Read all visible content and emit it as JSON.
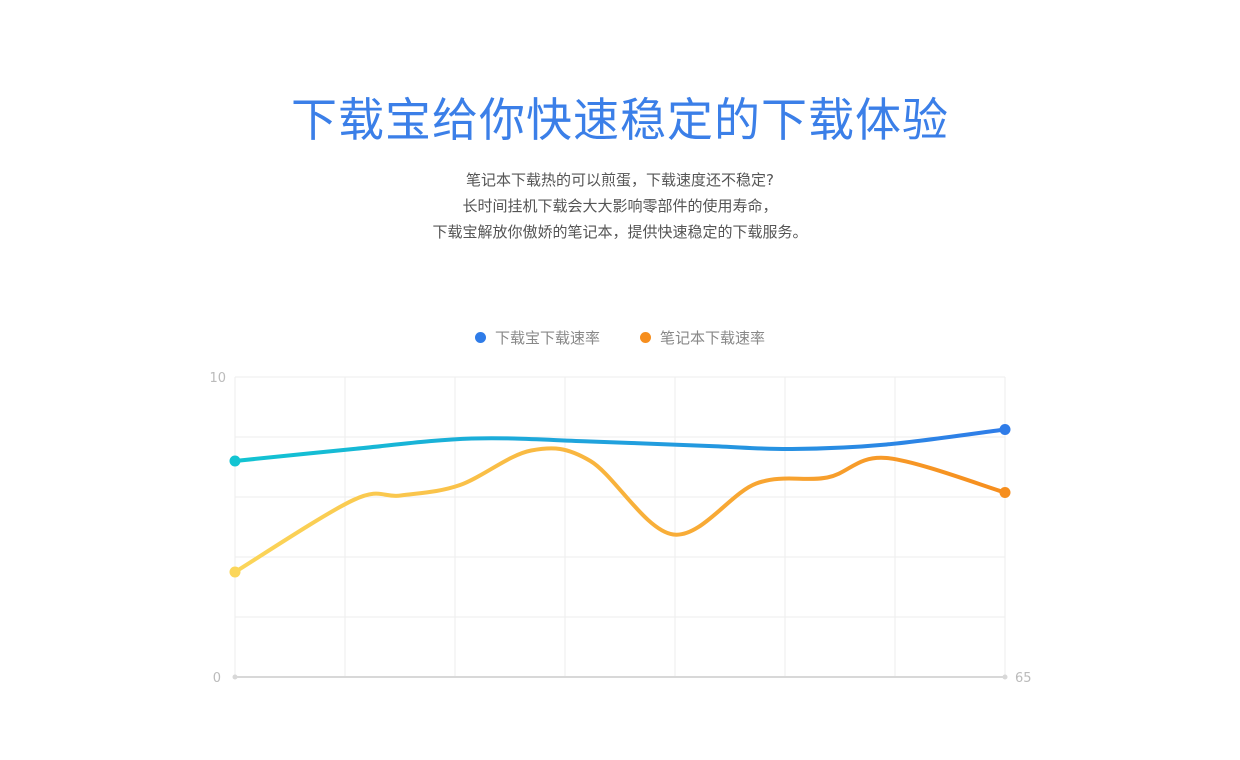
{
  "hero": {
    "title": "下载宝给你快速稳定的下载体验",
    "lines": [
      "笔记本下载热的可以煎蛋，下载速度还不稳定?",
      "长时间挂机下载会大大影响零部件的使用寿命，",
      "下载宝解放你傲娇的笔记本，提供快速稳定的下载服务。"
    ]
  },
  "chart_data": {
    "type": "line",
    "title": "",
    "xlabel": "",
    "ylabel": "",
    "xlim": [
      0,
      65
    ],
    "ylim": [
      0,
      10
    ],
    "x_ticks": [
      "",
      "65"
    ],
    "y_ticks": [
      "0",
      "10"
    ],
    "grid": true,
    "legend_position": "top-center",
    "series": [
      {
        "name": "下载宝下载速率",
        "color_start": "#12c4d2",
        "color_end": "#2f7ce8",
        "x": [
          0,
          10,
          20,
          30,
          40,
          47,
          55,
          65
        ],
        "y": [
          7.2,
          7.6,
          7.95,
          7.85,
          7.7,
          7.6,
          7.75,
          8.25
        ]
      },
      {
        "name": "笔记本下载速率",
        "color_start": "#fbd65a",
        "color_end": "#f68e1e",
        "x": [
          0,
          10,
          14,
          19,
          25,
          30,
          37,
          44,
          50,
          55,
          65
        ],
        "y": [
          3.5,
          5.9,
          6.05,
          6.4,
          7.55,
          7.2,
          4.75,
          6.45,
          6.65,
          7.3,
          6.15
        ]
      }
    ]
  }
}
